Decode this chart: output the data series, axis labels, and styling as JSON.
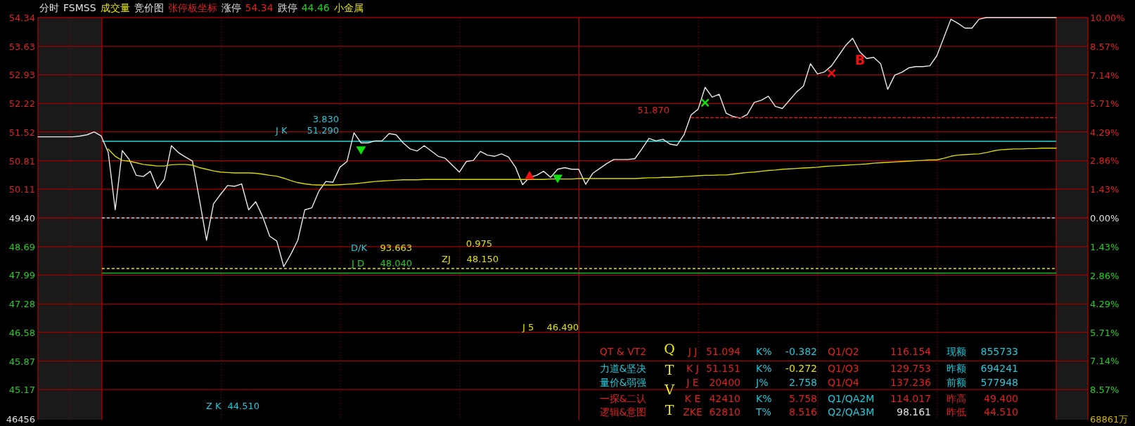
{
  "chart_data": {
    "type": "line",
    "title": "分时 FSMSS 成交量 竞价图 张停板坐标 涨停 54.34 跌停 44.46 小金属",
    "categories": [
      null,
      null,
      null,
      null,
      null,
      null,
      null,
      null,
      null,
      null,
      null,
      null,
      null,
      null,
      null,
      null,
      null,
      null,
      null,
      null,
      null,
      null,
      null,
      null,
      null,
      null,
      null,
      null,
      null,
      null,
      null,
      null,
      null,
      null,
      null,
      null,
      null,
      null,
      null,
      null,
      null,
      null,
      null,
      null,
      null,
      null,
      null,
      null,
      null,
      null,
      null,
      null,
      null,
      null,
      null,
      null,
      null,
      null,
      null,
      null,
      null,
      null,
      null,
      null,
      null,
      null,
      null,
      null,
      null,
      null,
      null,
      null,
      null,
      null,
      null,
      null,
      null,
      null,
      null,
      null,
      null,
      null,
      null,
      null,
      null,
      null,
      null,
      null,
      null,
      null,
      null,
      null,
      null,
      null,
      null,
      null,
      null,
      null,
      null,
      null,
      null,
      null,
      null,
      null,
      null,
      null,
      null,
      null,
      null,
      null,
      null,
      null,
      null,
      null,
      null,
      null,
      null,
      null,
      null,
      null,
      null,
      null,
      null,
      null,
      null,
      null,
      null,
      null,
      null,
      null,
      null,
      null,
      null,
      null,
      null,
      null,
      null,
      null,
      null,
      null,
      null,
      null,
      null,
      null,
      null,
      null
    ],
    "series": [
      {
        "type": "line",
        "color": "#e8e8e8",
        "values": [
          51.4,
          51.4,
          51.4,
          51.4,
          51.4,
          51.4,
          51.42,
          51.45,
          51.52,
          51.42,
          51.02,
          49.6,
          51.06,
          50.84,
          50.45,
          50.42,
          50.55,
          50.12,
          50.35,
          51.18,
          51.01,
          50.9,
          50.8,
          49.85,
          48.85,
          49.75,
          49.98,
          50.2,
          50.18,
          50.24,
          49.6,
          49.8,
          49.43,
          48.95,
          48.83,
          48.2,
          48.5,
          48.85,
          49.6,
          49.65,
          50.06,
          50.3,
          50.28,
          50.65,
          50.79,
          51.5,
          51.25,
          51.25,
          51.3,
          51.3,
          51.48,
          51.45,
          51.25,
          51.1,
          51.05,
          51.18,
          51.05,
          50.92,
          50.87,
          50.7,
          50.53,
          50.79,
          50.82,
          51.04,
          50.95,
          50.92,
          50.98,
          50.9,
          50.65,
          50.22,
          50.4,
          50.45,
          50.55,
          50.4,
          50.6,
          50.64,
          50.6,
          50.6,
          50.23,
          50.5,
          50.62,
          50.74,
          50.84,
          50.84,
          50.84,
          50.86,
          51.1,
          51.36,
          51.3,
          51.34,
          51.22,
          51.19,
          51.45,
          51.94,
          52.08,
          52.62,
          52.38,
          52.45,
          51.98,
          51.9,
          51.86,
          51.95,
          52.25,
          52.3,
          52.4,
          52.15,
          52.1,
          52.3,
          52.5,
          52.65,
          53.2,
          52.95,
          53.0,
          53.15,
          53.4,
          53.65,
          53.83,
          53.5,
          53.33,
          53.36,
          53.2,
          52.57,
          52.92,
          52.99,
          53.1,
          53.13,
          53.13,
          53.15,
          53.4,
          53.85,
          54.3,
          54.2,
          54.08,
          54.08,
          54.3,
          54.34,
          54.34,
          54.34,
          54.34,
          54.34,
          54.34,
          54.34,
          54.34,
          54.34,
          54.34,
          54.34
        ]
      },
      {
        "type": "line",
        "color": "#d8d800",
        "values": [
          null,
          null,
          null,
          null,
          null,
          null,
          null,
          null,
          null,
          null,
          51.1,
          50.92,
          50.82,
          50.8,
          50.76,
          50.72,
          50.7,
          50.68,
          50.68,
          50.71,
          50.72,
          50.72,
          50.7,
          50.64,
          50.6,
          50.56,
          50.53,
          50.52,
          50.51,
          50.51,
          50.51,
          50.5,
          50.48,
          50.45,
          50.43,
          50.38,
          50.32,
          50.27,
          50.24,
          50.22,
          50.21,
          50.21,
          50.21,
          50.22,
          50.23,
          50.24,
          50.26,
          50.28,
          50.3,
          50.31,
          50.32,
          50.33,
          50.34,
          50.34,
          50.34,
          50.35,
          50.35,
          50.35,
          50.35,
          50.35,
          50.35,
          50.35,
          50.35,
          50.35,
          50.35,
          50.35,
          50.35,
          50.35,
          50.35,
          50.35,
          50.35,
          50.35,
          50.35,
          50.36,
          50.36,
          50.36,
          50.36,
          50.37,
          50.37,
          50.37,
          50.37,
          50.37,
          50.37,
          50.37,
          50.37,
          50.37,
          50.38,
          50.39,
          50.39,
          50.4,
          50.4,
          50.41,
          50.42,
          50.43,
          50.44,
          50.45,
          50.45,
          50.46,
          50.46,
          50.48,
          50.5,
          50.52,
          50.53,
          50.55,
          50.57,
          50.58,
          50.6,
          50.61,
          50.62,
          50.63,
          50.64,
          50.65,
          50.67,
          50.68,
          50.69,
          50.7,
          50.71,
          50.72,
          50.73,
          50.75,
          50.76,
          50.77,
          50.78,
          50.79,
          50.8,
          50.81,
          50.82,
          50.83,
          50.83,
          50.87,
          50.92,
          50.95,
          50.96,
          50.97,
          50.98,
          51.01,
          51.05,
          51.08,
          51.09,
          51.1,
          51.1,
          51.11,
          51.11,
          51.12,
          51.12,
          51.12
        ]
      },
      {
        "type": "line",
        "color": "#d02020",
        "line_style": "dashed",
        "values": [
          null,
          null,
          null,
          null,
          null,
          null,
          null,
          null,
          null,
          null,
          null,
          null,
          null,
          null,
          null,
          null,
          null,
          null,
          null,
          null,
          null,
          null,
          null,
          null,
          null,
          null,
          null,
          null,
          null,
          null,
          null,
          null,
          null,
          null,
          null,
          null,
          null,
          null,
          null,
          null,
          null,
          null,
          null,
          null,
          null,
          null,
          null,
          null,
          null,
          null,
          null,
          null,
          null,
          null,
          null,
          null,
          null,
          null,
          null,
          null,
          null,
          null,
          null,
          null,
          null,
          null,
          null,
          null,
          null,
          null,
          null,
          null,
          null,
          null,
          null,
          null,
          null,
          null,
          null,
          null,
          null,
          null,
          null,
          null,
          null,
          null,
          null,
          null,
          null,
          null,
          null,
          null,
          null,
          51.87,
          51.87,
          51.87,
          51.87,
          51.87,
          51.87,
          51.87,
          51.87,
          51.87,
          51.87,
          51.87,
          51.87,
          51.87,
          51.87,
          51.87,
          51.87,
          51.87,
          51.87,
          51.87,
          51.87,
          51.87,
          51.87,
          51.87,
          51.87,
          51.87,
          51.87,
          51.87,
          51.87,
          51.87,
          51.87,
          51.87,
          51.87,
          51.87,
          51.87,
          51.87,
          51.87,
          51.87,
          51.87,
          51.87,
          51.87,
          51.87,
          51.87,
          51.87,
          51.87,
          51.87,
          51.87,
          51.87,
          51.87,
          51.87,
          51.87,
          51.87,
          51.87,
          51.87
        ]
      },
      {
        "type": "scatter",
        "color": "#10e010",
        "marker": "triangle_down",
        "values": [
          null,
          null,
          null,
          null,
          null,
          null,
          null,
          null,
          null,
          null,
          null,
          null,
          null,
          null,
          null,
          null,
          null,
          null,
          null,
          null,
          null,
          null,
          null,
          null,
          null,
          null,
          null,
          null,
          null,
          null,
          null,
          null,
          null,
          null,
          null,
          null,
          null,
          null,
          null,
          null,
          null,
          null,
          null,
          null,
          null,
          null,
          51.08,
          null,
          null,
          null,
          null,
          null,
          null,
          null,
          null,
          null,
          null,
          null,
          null,
          null,
          null,
          null,
          null,
          null,
          null,
          null,
          null,
          null,
          null,
          null,
          null,
          null,
          null,
          null,
          null,
          null,
          null,
          null,
          null,
          null,
          null,
          null,
          null,
          null,
          null,
          null,
          null,
          null,
          null,
          null,
          null,
          null,
          null,
          null,
          null,
          null,
          null,
          null,
          null,
          null,
          null,
          null,
          null,
          null,
          null,
          null,
          null,
          null,
          null,
          null,
          null,
          null,
          null,
          null,
          null,
          null,
          null,
          null,
          null,
          null,
          null,
          null,
          null,
          null,
          null,
          null,
          null,
          null,
          null,
          null,
          null,
          null,
          null,
          null,
          null,
          null,
          null,
          null,
          null,
          null,
          null,
          null,
          null,
          null,
          null,
          null
        ]
      },
      {
        "type": "scatter",
        "color": "#f01010",
        "marker": "triangle",
        "values": [
          null,
          null,
          null,
          null,
          null,
          null,
          null,
          null,
          null,
          null,
          null,
          null,
          null,
          null,
          null,
          null,
          null,
          null,
          null,
          null,
          null,
          null,
          null,
          null,
          null,
          null,
          null,
          null,
          null,
          null,
          null,
          null,
          null,
          null,
          null,
          null,
          null,
          null,
          null,
          null,
          null,
          null,
          null,
          null,
          null,
          null,
          null,
          null,
          null,
          null,
          null,
          null,
          null,
          null,
          null,
          null,
          null,
          null,
          null,
          null,
          null,
          null,
          null,
          null,
          null,
          null,
          null,
          null,
          null,
          null,
          50.44,
          null,
          null,
          null,
          null,
          null,
          null,
          null,
          null,
          null,
          null,
          null,
          null,
          null,
          null,
          null,
          null,
          null,
          null,
          null,
          null,
          null,
          null,
          null,
          null,
          null,
          null,
          null,
          null,
          null,
          null,
          null,
          null,
          null,
          null,
          null,
          null,
          null,
          null,
          null,
          null,
          null,
          null,
          null,
          null,
          null,
          null,
          null,
          null,
          null,
          null,
          null,
          null,
          null,
          null,
          null,
          null,
          null,
          null,
          null,
          null,
          null,
          null,
          null,
          null,
          null,
          null,
          null,
          null,
          null,
          null,
          null,
          null,
          null,
          null,
          null
        ]
      },
      {
        "type": "scatter",
        "color": "#10e010",
        "marker": "triangle_down",
        "values": [
          null,
          null,
          null,
          null,
          null,
          null,
          null,
          null,
          null,
          null,
          null,
          null,
          null,
          null,
          null,
          null,
          null,
          null,
          null,
          null,
          null,
          null,
          null,
          null,
          null,
          null,
          null,
          null,
          null,
          null,
          null,
          null,
          null,
          null,
          null,
          null,
          null,
          null,
          null,
          null,
          null,
          null,
          null,
          null,
          null,
          null,
          null,
          null,
          null,
          null,
          null,
          null,
          null,
          null,
          null,
          null,
          null,
          null,
          null,
          null,
          null,
          null,
          null,
          null,
          null,
          null,
          null,
          null,
          null,
          null,
          null,
          null,
          null,
          null,
          50.38,
          null,
          null,
          null,
          null,
          null,
          null,
          null,
          null,
          null,
          null,
          null,
          null,
          null,
          null,
          null,
          null,
          null,
          null,
          null,
          null,
          null,
          null,
          null,
          null,
          null,
          null,
          null,
          null,
          null,
          null,
          null,
          null,
          null,
          null,
          null,
          null,
          null,
          null,
          null,
          null,
          null,
          null,
          null,
          null,
          null,
          null,
          null,
          null,
          null,
          null,
          null,
          null,
          null,
          null,
          null,
          null,
          null,
          null,
          null,
          null,
          null,
          null,
          null,
          null,
          null,
          null,
          null,
          null,
          null,
          null,
          null
        ]
      },
      {
        "type": "scatter",
        "color": "#10e010",
        "marker": "cross",
        "values": [
          null,
          null,
          null,
          null,
          null,
          null,
          null,
          null,
          null,
          null,
          null,
          null,
          null,
          null,
          null,
          null,
          null,
          null,
          null,
          null,
          null,
          null,
          null,
          null,
          null,
          null,
          null,
          null,
          null,
          null,
          null,
          null,
          null,
          null,
          null,
          null,
          null,
          null,
          null,
          null,
          null,
          null,
          null,
          null,
          null,
          null,
          null,
          null,
          null,
          null,
          null,
          null,
          null,
          null,
          null,
          null,
          null,
          null,
          null,
          null,
          null,
          null,
          null,
          null,
          null,
          null,
          null,
          null,
          null,
          null,
          null,
          null,
          null,
          null,
          null,
          null,
          null,
          null,
          null,
          null,
          null,
          null,
          null,
          null,
          null,
          null,
          null,
          null,
          null,
          null,
          null,
          null,
          null,
          null,
          null,
          52.24,
          null,
          null,
          null,
          null,
          null,
          null,
          null,
          null,
          null,
          null,
          null,
          null,
          null,
          null,
          null,
          null,
          null,
          null,
          null,
          null,
          null,
          null,
          null,
          null,
          null,
          null,
          null,
          null,
          null,
          null,
          null,
          null,
          null,
          null,
          null,
          null,
          null,
          null,
          null,
          null,
          null,
          null,
          null,
          null,
          null,
          null,
          null,
          null,
          null,
          null
        ]
      },
      {
        "type": "scatter",
        "color": "#f01010",
        "marker": "cross",
        "values": [
          null,
          null,
          null,
          null,
          null,
          null,
          null,
          null,
          null,
          null,
          null,
          null,
          null,
          null,
          null,
          null,
          null,
          null,
          null,
          null,
          null,
          null,
          null,
          null,
          null,
          null,
          null,
          null,
          null,
          null,
          null,
          null,
          null,
          null,
          null,
          null,
          null,
          null,
          null,
          null,
          null,
          null,
          null,
          null,
          null,
          null,
          null,
          null,
          null,
          null,
          null,
          null,
          null,
          null,
          null,
          null,
          null,
          null,
          null,
          null,
          null,
          null,
          null,
          null,
          null,
          null,
          null,
          null,
          null,
          null,
          null,
          null,
          null,
          null,
          null,
          null,
          null,
          null,
          null,
          null,
          null,
          null,
          null,
          null,
          null,
          null,
          null,
          null,
          null,
          null,
          null,
          null,
          null,
          null,
          null,
          null,
          null,
          null,
          null,
          null,
          null,
          null,
          null,
          null,
          null,
          null,
          null,
          null,
          null,
          null,
          null,
          null,
          null,
          52.97,
          null,
          null,
          null,
          null,
          null,
          null,
          null,
          null,
          null,
          null,
          null,
          null,
          null,
          null,
          null,
          null,
          null,
          null,
          null,
          null,
          null,
          null,
          null,
          null,
          null,
          null,
          null,
          null,
          null,
          null,
          null,
          null
        ]
      }
    ],
    "ylim": [
      44.46,
      54.34
    ],
    "yticks": [
      54.34,
      53.63,
      52.93,
      52.22,
      51.52,
      50.81,
      50.11,
      {
        "value": 49.4,
        "label": "49.40"
      },
      48.69,
      47.99,
      47.28,
      46.58,
      45.87,
      45.17
    ],
    "y2lim": [
      -10,
      10
    ],
    "y2ticks": [
      {
        "value": 10,
        "label": "10.00%"
      },
      {
        "value": 8.57,
        "label": "8.57%"
      },
      {
        "value": 7.14,
        "label": "7.14%"
      },
      {
        "value": 5.71,
        "label": "5.71%"
      },
      {
        "value": 4.29,
        "label": "4.29%"
      },
      {
        "value": 2.86,
        "label": "2.86%"
      },
      {
        "value": 1.43,
        "label": "1.43%"
      },
      {
        "value": 0,
        "label": "0.00%"
      },
      {
        "value": -1.43,
        "label": "1.43%"
      },
      {
        "value": -2.86,
        "label": "2.86%"
      },
      {
        "value": -4.29,
        "label": "4.29%"
      },
      {
        "value": -5.71,
        "label": "5.71%"
      },
      {
        "value": -7.14,
        "label": "7.14%"
      },
      {
        "value": -8.57,
        "label": "8.57%"
      }
    ],
    "grid": true,
    "ref_lines": [
      {
        "axis": "y",
        "value": 51.29,
        "label": "J K  51.290",
        "color": "#20d8d8"
      },
      {
        "axis": "y",
        "value": 49.4,
        "color": "#90e0f0",
        "line_style": "dashed"
      },
      {
        "axis": "y",
        "value": 48.15,
        "label": "ZJ  48.150",
        "color": "#e8e800",
        "line_style": "dashed"
      },
      {
        "axis": "y",
        "value": 48.04,
        "label": "J D  48.040",
        "color": "#10c010"
      }
    ],
    "annotations": [
      "3.830",
      "51.870",
      "D/K  93.663",
      "0.975",
      "J 5  46.490",
      "Z K  44.510",
      "B",
      "QT & VT2",
      "J J",
      "51.094",
      "K%",
      "-0.382",
      "Q1/Q2",
      "116.154",
      "现额",
      "855733",
      "力道&坚决",
      "K J",
      "51.151",
      "K%",
      "-0.272",
      "Q1/Q3",
      "129.753",
      "昨额",
      "694241",
      "量价&弱强",
      "J E",
      "20400",
      "J%",
      "2.758",
      "Q1/Q4",
      "137.236",
      "前额",
      "577948",
      "一探&二认",
      "K E",
      "42410",
      "K%",
      "5.758",
      "Q1/QA2M",
      "114.017",
      "昨高",
      "49.400",
      "逻辑&意图",
      "ZKE",
      "62810",
      "T%",
      "8.516",
      "Q2/QA3M",
      "98.161",
      "昨低",
      "44.510",
      "Q",
      "T",
      "V",
      "T",
      "46456",
      "68861万"
    ]
  }
}
